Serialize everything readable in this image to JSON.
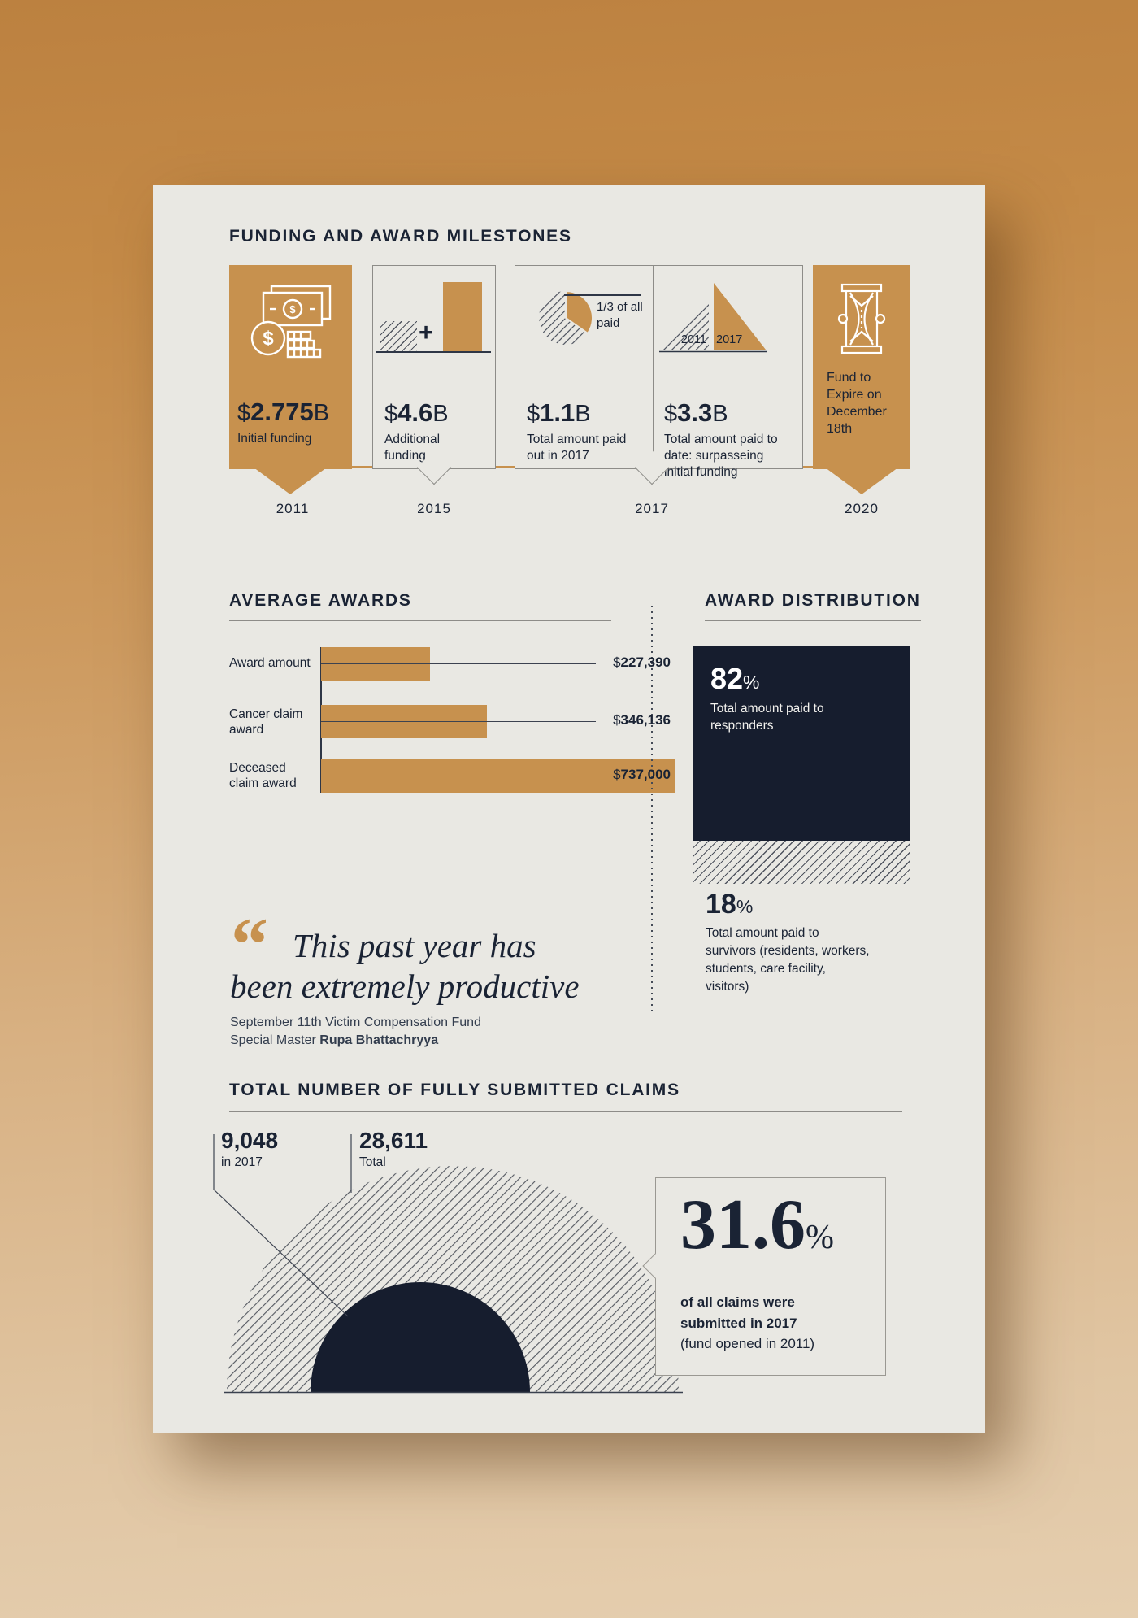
{
  "colors": {
    "accent": "#C7914E",
    "navy": "#1A2334",
    "block_navy": "#161D2E",
    "card": "#E9E8E3",
    "bg_top": "#BC8140",
    "bg_bottom": "#E5CEAF"
  },
  "milestones": {
    "title": "FUNDING AND AWARD MILESTONES",
    "items": [
      {
        "prefix": "$",
        "value": "2.775",
        "suffix": "B",
        "label": "Initial funding",
        "icon": "money-icon"
      },
      {
        "prefix": "$",
        "value": "4.6",
        "suffix": "B",
        "label": "Additional funding",
        "plus": "+",
        "icon": "growth-bar-icon"
      },
      {
        "prefix": "$",
        "value": "1.1",
        "suffix": "B",
        "label": "Total amount paid out in 2017",
        "note": "1/3 of all paid",
        "icon": "pie-third-icon"
      },
      {
        "prefix": "$",
        "value": "3.3",
        "suffix": "B",
        "label": "Total amount paid to date: surpasseing initial funding",
        "triangle_years": [
          "2011",
          "2017"
        ],
        "icon": "triangle-growth-icon"
      },
      {
        "label": "Fund to Expire on December 18th",
        "icon": "hourglass-icon"
      }
    ],
    "years": [
      "2011",
      "2015",
      "2017",
      "2020"
    ]
  },
  "average_awards": {
    "title": "AVERAGE AWARDS",
    "rows": [
      {
        "label": "Award amount",
        "currency": "$",
        "value": "227,390"
      },
      {
        "label": "Cancer claim award",
        "currency": "$",
        "value": "346,136"
      },
      {
        "label": "Deceased claim award",
        "currency": "$",
        "value": "737,000"
      }
    ]
  },
  "distribution": {
    "title": "AWARD DISTRIBUTION",
    "segments": [
      {
        "value": "82",
        "sign": "%",
        "label": "Total amount paid to responders"
      },
      {
        "value": "18",
        "sign": "%",
        "label": "Total amount paid to survivors (residents, workers, students, care facility, visitors)"
      }
    ]
  },
  "quote": {
    "mark": "“",
    "line1": "This past year has",
    "line2": "been extremely productive",
    "source_line1": "September 11th Victim Compensation Fund",
    "source_prefix": "Special Master ",
    "source_name": "Rupa Bhattachryya"
  },
  "claims": {
    "title": "TOTAL NUMBER OF FULLY SUBMITTED CLAIMS",
    "count_2017": "9,048",
    "count_2017_caption": "in 2017",
    "count_total": "28,611",
    "count_total_caption": "Total",
    "callout": {
      "value": "31.6",
      "sign": "%",
      "line1": "of all claims were",
      "line2": "submitted in 2017",
      "line3": "(fund opened in 2011)"
    }
  },
  "chart_data": [
    {
      "type": "table",
      "title": "FUNDING AND AWARD MILESTONES",
      "columns": [
        "year",
        "amount",
        "label"
      ],
      "rows": [
        [
          "2011",
          "$2.775B",
          "Initial funding"
        ],
        [
          "2015",
          "$4.6B",
          "Additional funding"
        ],
        [
          "2017",
          "$1.1B",
          "Total amount paid out in 2017"
        ],
        [
          "2017",
          "$3.3B",
          "Total amount paid to date: surpasseing initial funding"
        ],
        [
          "2020",
          null,
          "Fund to Expire on December 18th"
        ]
      ]
    },
    {
      "type": "bar",
      "orientation": "horizontal",
      "title": "AVERAGE AWARDS",
      "categories": [
        "Award amount",
        "Cancer claim award",
        "Deceased claim award"
      ],
      "values": [
        227390,
        346136,
        737000
      ],
      "value_labels": [
        "$227,390",
        "$346,136",
        "$737,000"
      ],
      "xlabel": "",
      "ylabel": "",
      "xlim": [
        0,
        737000
      ],
      "grid": false
    },
    {
      "type": "pie",
      "title": "AWARD DISTRIBUTION",
      "categories": [
        "Total amount paid to responders",
        "Total amount paid to survivors (residents, workers, students, care facility, visitors)"
      ],
      "values": [
        82,
        18
      ]
    },
    {
      "type": "area",
      "title": "TOTAL NUMBER OF FULLY SUBMITTED CLAIMS",
      "categories": [
        "in 2017",
        "Total"
      ],
      "values": [
        9048,
        28611
      ],
      "annotation": "31.6% of all claims were submitted in 2017 (fund opened in 2011)"
    }
  ]
}
